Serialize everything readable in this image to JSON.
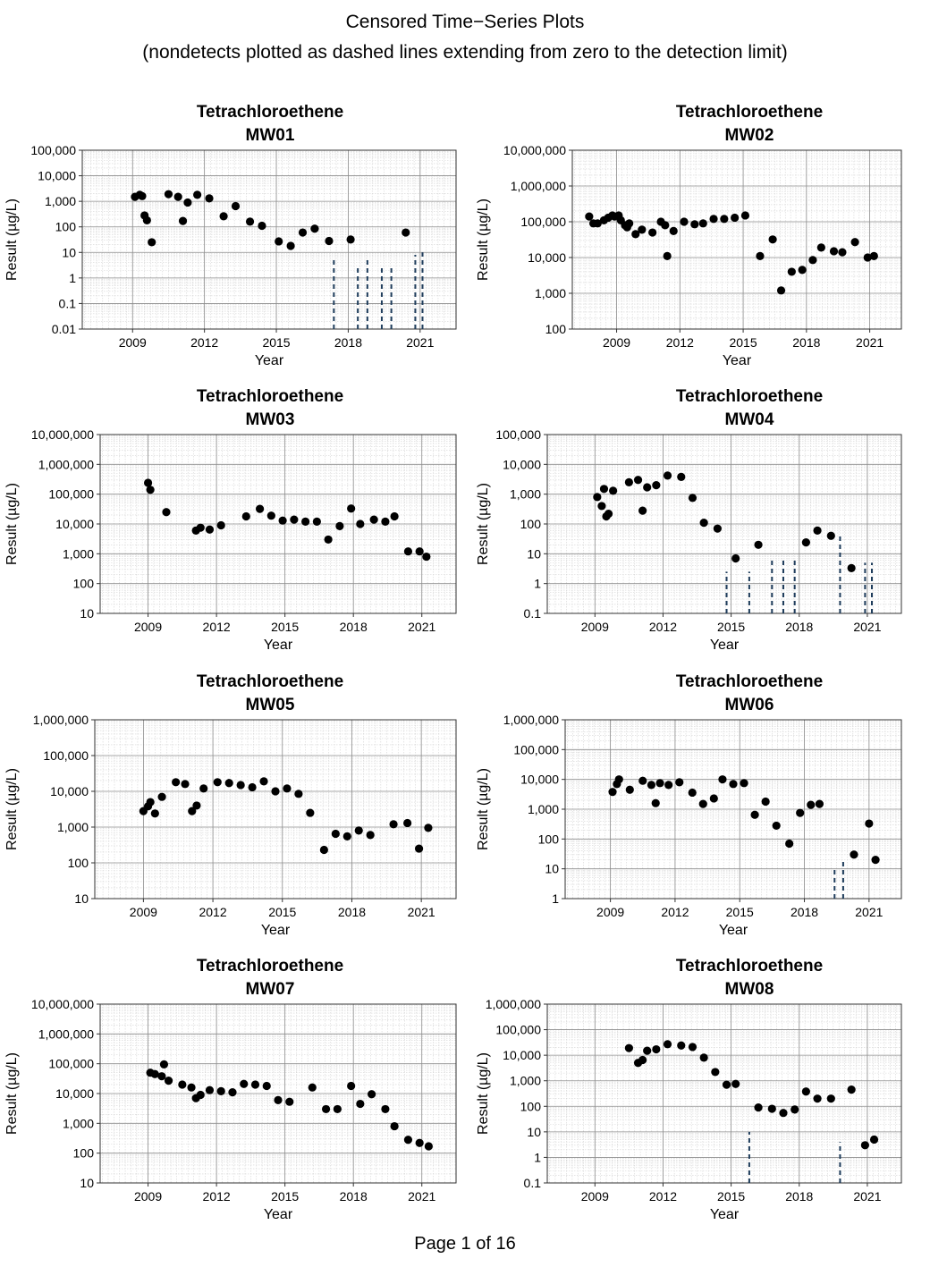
{
  "page": {
    "title_line1": "Censored Time−Series Plots",
    "title_line2": "(nondetects plotted as dashed lines extending from zero to the detection limit)",
    "footer": "Page 1 of 16"
  },
  "colors": {
    "point": "#000000",
    "nondetect": "#1f3d5c",
    "grid_major": "#8c8c8c",
    "grid_minor": "#d4d4d4"
  },
  "chart_data": [
    {
      "type": "scatter",
      "scale": "log",
      "title": "Tetrachloroethene",
      "subtitle": "MW01",
      "xlabel": "Year",
      "ylabel": "Result (µg/L)",
      "xlim": [
        2006.9,
        2022.5
      ],
      "xticks": [
        2009,
        2012,
        2015,
        2018,
        2021
      ],
      "ylim": [
        0.01,
        100000
      ],
      "ytick_labels": [
        "0.01",
        "0.1",
        "1",
        "10",
        "100",
        "1,000",
        "10,000",
        "100,000"
      ],
      "points": [
        [
          2009.1,
          1500
        ],
        [
          2009.3,
          1800
        ],
        [
          2009.4,
          1600
        ],
        [
          2009.5,
          280
        ],
        [
          2009.6,
          180
        ],
        [
          2009.8,
          25
        ],
        [
          2010.5,
          1900
        ],
        [
          2010.9,
          1500
        ],
        [
          2011.1,
          170
        ],
        [
          2011.3,
          900
        ],
        [
          2011.7,
          1800
        ],
        [
          2012.2,
          1300
        ],
        [
          2012.8,
          260
        ],
        [
          2013.3,
          650
        ],
        [
          2013.9,
          160
        ],
        [
          2014.4,
          110
        ],
        [
          2015.1,
          27
        ],
        [
          2015.6,
          18
        ],
        [
          2016.1,
          60
        ],
        [
          2016.6,
          85
        ],
        [
          2017.2,
          28
        ],
        [
          2018.1,
          32
        ],
        [
          2020.4,
          60
        ]
      ],
      "nondetects": [
        [
          2017.4,
          6
        ],
        [
          2018.4,
          3
        ],
        [
          2018.8,
          6
        ],
        [
          2019.4,
          3
        ],
        [
          2019.8,
          3
        ],
        [
          2020.8,
          8
        ],
        [
          2021.1,
          10
        ]
      ]
    },
    {
      "type": "scatter",
      "scale": "log",
      "title": "Tetrachloroethene",
      "subtitle": "MW02",
      "xlabel": "Year",
      "ylabel": "Result (µg/L)",
      "xlim": [
        2006.9,
        2022.5
      ],
      "xticks": [
        2009,
        2012,
        2015,
        2018,
        2021
      ],
      "ylim": [
        100,
        10000000
      ],
      "ytick_labels": [
        "100",
        "1,000",
        "10,000",
        "100,000",
        "1,000,000",
        "10,000,000"
      ],
      "points": [
        [
          2007.7,
          140000
        ],
        [
          2007.9,
          90000
        ],
        [
          2008.1,
          90000
        ],
        [
          2008.4,
          110000
        ],
        [
          2008.6,
          130000
        ],
        [
          2008.8,
          150000
        ],
        [
          2008.9,
          140000
        ],
        [
          2009.1,
          150000
        ],
        [
          2009.2,
          110000
        ],
        [
          2009.4,
          80000
        ],
        [
          2009.5,
          70000
        ],
        [
          2009.6,
          90000
        ],
        [
          2009.9,
          45000
        ],
        [
          2010.2,
          60000
        ],
        [
          2010.7,
          50000
        ],
        [
          2011.1,
          100000
        ],
        [
          2011.3,
          80000
        ],
        [
          2011.4,
          11000
        ],
        [
          2011.7,
          55000
        ],
        [
          2012.2,
          100000
        ],
        [
          2012.7,
          85000
        ],
        [
          2013.1,
          90000
        ],
        [
          2013.6,
          120000
        ],
        [
          2014.1,
          120000
        ],
        [
          2014.6,
          130000
        ],
        [
          2015.1,
          150000
        ],
        [
          2015.8,
          11000
        ],
        [
          2016.4,
          32000
        ],
        [
          2016.8,
          1200
        ],
        [
          2017.3,
          4000
        ],
        [
          2017.8,
          4500
        ],
        [
          2018.3,
          8500
        ],
        [
          2018.7,
          19000
        ],
        [
          2019.3,
          15000
        ],
        [
          2019.7,
          14000
        ],
        [
          2020.3,
          27000
        ],
        [
          2020.9,
          10000
        ],
        [
          2021.2,
          11000
        ]
      ],
      "nondetects": []
    },
    {
      "type": "scatter",
      "scale": "log",
      "title": "Tetrachloroethene",
      "subtitle": "MW03",
      "xlabel": "Year",
      "ylabel": "Result (µg/L)",
      "xlim": [
        2006.9,
        2022.5
      ],
      "xticks": [
        2009,
        2012,
        2015,
        2018,
        2021
      ],
      "ylim": [
        10,
        10000000
      ],
      "ytick_labels": [
        "10",
        "100",
        "1,000",
        "10,000",
        "100,000",
        "1,000,000",
        "10,000,000"
      ],
      "points": [
        [
          2009.0,
          240000
        ],
        [
          2009.1,
          140000
        ],
        [
          2009.8,
          25000
        ],
        [
          2011.1,
          6000
        ],
        [
          2011.3,
          7500
        ],
        [
          2011.7,
          6500
        ],
        [
          2012.2,
          9000
        ],
        [
          2013.3,
          18000
        ],
        [
          2013.9,
          32000
        ],
        [
          2014.4,
          19000
        ],
        [
          2014.9,
          13000
        ],
        [
          2015.4,
          14000
        ],
        [
          2015.9,
          12000
        ],
        [
          2016.4,
          12000
        ],
        [
          2016.9,
          3000
        ],
        [
          2017.4,
          8500
        ],
        [
          2017.9,
          33000
        ],
        [
          2018.3,
          10000
        ],
        [
          2018.9,
          14000
        ],
        [
          2019.4,
          12000
        ],
        [
          2019.8,
          18000
        ],
        [
          2020.4,
          1200
        ],
        [
          2020.9,
          1200
        ],
        [
          2021.2,
          800
        ]
      ],
      "nondetects": []
    },
    {
      "type": "scatter",
      "scale": "log",
      "title": "Tetrachloroethene",
      "subtitle": "MW04",
      "xlabel": "Year",
      "ylabel": "Result (µg/L)",
      "xlim": [
        2006.9,
        2022.5
      ],
      "xticks": [
        2009,
        2012,
        2015,
        2018,
        2021
      ],
      "ylim": [
        0.1,
        100000
      ],
      "ytick_labels": [
        "0.1",
        "1",
        "10",
        "100",
        "1,000",
        "10,000",
        "100,000"
      ],
      "points": [
        [
          2009.1,
          800
        ],
        [
          2009.3,
          400
        ],
        [
          2009.4,
          1500
        ],
        [
          2009.5,
          180
        ],
        [
          2009.6,
          220
        ],
        [
          2009.8,
          1300
        ],
        [
          2010.5,
          2500
        ],
        [
          2010.9,
          3000
        ],
        [
          2011.1,
          280
        ],
        [
          2011.3,
          1700
        ],
        [
          2011.7,
          2000
        ],
        [
          2012.2,
          4200
        ],
        [
          2012.8,
          3800
        ],
        [
          2013.3,
          750
        ],
        [
          2013.8,
          110
        ],
        [
          2014.4,
          70
        ],
        [
          2015.2,
          7
        ],
        [
          2016.2,
          20
        ],
        [
          2018.3,
          24
        ],
        [
          2018.8,
          60
        ],
        [
          2019.4,
          40
        ],
        [
          2020.3,
          3.3
        ]
      ],
      "nondetects": [
        [
          2014.8,
          2.5
        ],
        [
          2015.8,
          2.5
        ],
        [
          2016.8,
          6
        ],
        [
          2017.3,
          6
        ],
        [
          2017.8,
          6
        ],
        [
          2019.8,
          40
        ],
        [
          2020.9,
          5
        ],
        [
          2021.2,
          5
        ]
      ]
    },
    {
      "type": "scatter",
      "scale": "log",
      "title": "Tetrachloroethene",
      "subtitle": "MW05",
      "xlabel": "Year",
      "ylabel": "Result (µg/L)",
      "xlim": [
        2006.9,
        2022.5
      ],
      "xticks": [
        2009,
        2012,
        2015,
        2018,
        2021
      ],
      "ylim": [
        10,
        1000000
      ],
      "ytick_labels": [
        "10",
        "100",
        "1,000",
        "10,000",
        "100,000",
        "1,000,000"
      ],
      "points": [
        [
          2009.0,
          2800
        ],
        [
          2009.2,
          3800
        ],
        [
          2009.3,
          5000
        ],
        [
          2009.5,
          2400
        ],
        [
          2009.8,
          7000
        ],
        [
          2010.4,
          18000
        ],
        [
          2010.8,
          16000
        ],
        [
          2011.1,
          2800
        ],
        [
          2011.3,
          4000
        ],
        [
          2011.6,
          12000
        ],
        [
          2012.2,
          18000
        ],
        [
          2012.7,
          17000
        ],
        [
          2013.2,
          15000
        ],
        [
          2013.7,
          13000
        ],
        [
          2014.2,
          19000
        ],
        [
          2014.7,
          10000
        ],
        [
          2015.2,
          12000
        ],
        [
          2015.7,
          8500
        ],
        [
          2016.2,
          2500
        ],
        [
          2016.8,
          230
        ],
        [
          2017.3,
          650
        ],
        [
          2017.8,
          550
        ],
        [
          2018.3,
          800
        ],
        [
          2018.8,
          600
        ],
        [
          2019.8,
          1200
        ],
        [
          2020.4,
          1300
        ],
        [
          2020.9,
          250
        ],
        [
          2021.3,
          950
        ]
      ],
      "nondetects": []
    },
    {
      "type": "scatter",
      "scale": "log",
      "title": "Tetrachloroethene",
      "subtitle": "MW06",
      "xlabel": "Year",
      "ylabel": "Result (µg/L)",
      "xlim": [
        2006.9,
        2022.5
      ],
      "xticks": [
        2009,
        2012,
        2015,
        2018,
        2021
      ],
      "ylim": [
        1,
        1000000
      ],
      "ytick_labels": [
        "1",
        "10",
        "100",
        "1,000",
        "10,000",
        "100,000",
        "1,000,000"
      ],
      "points": [
        [
          2009.1,
          3800
        ],
        [
          2009.3,
          7000
        ],
        [
          2009.4,
          10000
        ],
        [
          2009.9,
          4500
        ],
        [
          2010.5,
          9000
        ],
        [
          2010.9,
          6500
        ],
        [
          2011.1,
          1600
        ],
        [
          2011.3,
          7500
        ],
        [
          2011.7,
          6500
        ],
        [
          2012.2,
          8000
        ],
        [
          2012.8,
          3600
        ],
        [
          2013.3,
          1500
        ],
        [
          2013.8,
          2300
        ],
        [
          2014.2,
          10000
        ],
        [
          2014.7,
          7000
        ],
        [
          2015.2,
          7500
        ],
        [
          2015.7,
          650
        ],
        [
          2016.2,
          1800
        ],
        [
          2016.7,
          280
        ],
        [
          2017.3,
          70
        ],
        [
          2017.8,
          750
        ],
        [
          2018.3,
          1400
        ],
        [
          2018.7,
          1500
        ],
        [
          2020.3,
          30
        ],
        [
          2021.0,
          330
        ],
        [
          2021.3,
          20
        ]
      ],
      "nondetects": [
        [
          2019.4,
          10
        ],
        [
          2019.8,
          20
        ]
      ]
    },
    {
      "type": "scatter",
      "scale": "log",
      "title": "Tetrachloroethene",
      "subtitle": "MW07",
      "xlabel": "Year",
      "ylabel": "Result (µg/L)",
      "xlim": [
        2006.9,
        2022.5
      ],
      "xticks": [
        2009,
        2012,
        2015,
        2018,
        2021
      ],
      "ylim": [
        10,
        10000000
      ],
      "ytick_labels": [
        "10",
        "100",
        "1,000",
        "10,000",
        "100,000",
        "1,000,000",
        "10,000,000"
      ],
      "points": [
        [
          2009.1,
          50000
        ],
        [
          2009.3,
          45000
        ],
        [
          2009.6,
          38000
        ],
        [
          2009.7,
          95000
        ],
        [
          2009.9,
          27000
        ],
        [
          2010.5,
          20000
        ],
        [
          2010.9,
          16000
        ],
        [
          2011.1,
          7000
        ],
        [
          2011.3,
          9000
        ],
        [
          2011.7,
          13000
        ],
        [
          2012.2,
          12000
        ],
        [
          2012.7,
          11000
        ],
        [
          2013.2,
          21000
        ],
        [
          2013.7,
          20000
        ],
        [
          2014.2,
          18000
        ],
        [
          2014.7,
          6000
        ],
        [
          2015.2,
          5300
        ],
        [
          2016.2,
          16000
        ],
        [
          2016.8,
          3000
        ],
        [
          2017.3,
          3000
        ],
        [
          2017.9,
          18000
        ],
        [
          2018.3,
          4500
        ],
        [
          2018.8,
          9500
        ],
        [
          2019.4,
          3000
        ],
        [
          2019.8,
          800
        ],
        [
          2020.4,
          280
        ],
        [
          2020.9,
          220
        ],
        [
          2021.3,
          170
        ]
      ],
      "nondetects": []
    },
    {
      "type": "scatter",
      "scale": "log",
      "title": "Tetrachloroethene",
      "subtitle": "MW08",
      "xlabel": "Year",
      "ylabel": "Result (µg/L)",
      "xlim": [
        2006.9,
        2022.5
      ],
      "xticks": [
        2009,
        2012,
        2015,
        2018,
        2021
      ],
      "ylim": [
        0.1,
        1000000
      ],
      "ytick_labels": [
        "0.1",
        "1",
        "10",
        "100",
        "1,000",
        "10,000",
        "100,000",
        "1,000,000"
      ],
      "points": [
        [
          2010.5,
          19000
        ],
        [
          2010.9,
          5000
        ],
        [
          2011.1,
          6500
        ],
        [
          2011.3,
          15000
        ],
        [
          2011.7,
          17000
        ],
        [
          2012.2,
          27000
        ],
        [
          2012.8,
          24000
        ],
        [
          2013.3,
          21000
        ],
        [
          2013.8,
          8000
        ],
        [
          2014.3,
          2200
        ],
        [
          2014.8,
          700
        ],
        [
          2015.2,
          750
        ],
        [
          2016.2,
          90
        ],
        [
          2016.8,
          80
        ],
        [
          2017.3,
          55
        ],
        [
          2017.8,
          75
        ],
        [
          2018.3,
          380
        ],
        [
          2018.8,
          200
        ],
        [
          2019.4,
          200
        ],
        [
          2020.3,
          450
        ],
        [
          2020.9,
          3
        ],
        [
          2021.3,
          5
        ]
      ],
      "nondetects": [
        [
          2015.8,
          10
        ],
        [
          2019.8,
          4
        ]
      ]
    }
  ]
}
